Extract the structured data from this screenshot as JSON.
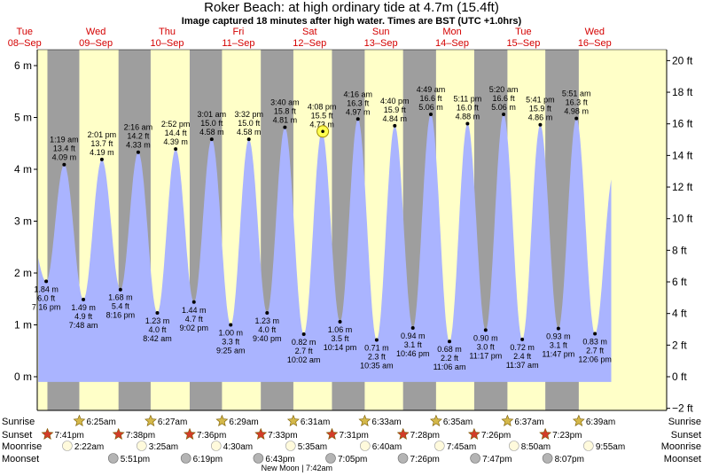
{
  "header": {
    "title": "Roker Beach: at high  ordinary tide at 4.7m (15.4ft)",
    "subtitle": "Image captured 18 minutes after high water. Times are BST (UTC +1.0hrs)"
  },
  "days": [
    {
      "dow": "Tue",
      "date": "08–Sep"
    },
    {
      "dow": "Wed",
      "date": "09–Sep"
    },
    {
      "dow": "Thu",
      "date": "10–Sep"
    },
    {
      "dow": "Fri",
      "date": "11–Sep"
    },
    {
      "dow": "Sat",
      "date": "12–Sep"
    },
    {
      "dow": "Sun",
      "date": "13–Sep"
    },
    {
      "dow": "Mon",
      "date": "14–Sep"
    },
    {
      "dow": "Tue",
      "date": "15–Sep"
    },
    {
      "dow": "Wed",
      "date": "16–Sep"
    }
  ],
  "colors": {
    "night": "#9e9e9e",
    "day": "#ffffc8",
    "tide": "#aab4ff",
    "date_text": "#d40000",
    "sun_star": "#d4b84a",
    "sunset_star": "#d23c28",
    "moonrise": "#fffadc",
    "moonset": "#b4b4b4"
  },
  "chart_data": {
    "type": "area",
    "x_unit": "hours from 00:00 Tue 08-Sep (BST)",
    "xlim": [
      16.25,
      228.25
    ],
    "ylim_m": [
      -0.17,
      6.32
    ],
    "ylim_ft": [
      -2,
      21
    ],
    "y_ticks_m": [
      "0 m",
      "1 m",
      "2 m",
      "3 m",
      "4 m",
      "5 m",
      "6 m"
    ],
    "y_ticks_ft": [
      "−2 ft",
      "0 ft",
      "2 ft",
      "4 ft",
      "6 ft",
      "8 ft",
      "10 ft",
      "12 ft",
      "14 ft",
      "16 ft",
      "18 ft",
      "20 ft"
    ],
    "start_level_m": 2.9,
    "end_level_m": 3.5,
    "extremes": [
      {
        "type": "low",
        "time": "7:16 pm",
        "m": "1.84 m",
        "ft": "6.0 ft",
        "h": 19.27,
        "v": 1.84
      },
      {
        "type": "high",
        "time": "1:19 am",
        "m": "4.09 m",
        "ft": "13.4 ft",
        "h": 25.32,
        "v": 4.09
      },
      {
        "type": "low",
        "time": "7:48 am",
        "m": "1.49 m",
        "ft": "4.9 ft",
        "h": 31.8,
        "v": 1.49
      },
      {
        "type": "high",
        "time": "2:01 pm",
        "m": "4.19 m",
        "ft": "13.7 ft",
        "h": 38.02,
        "v": 4.19
      },
      {
        "type": "low",
        "time": "8:16 pm",
        "m": "1.68 m",
        "ft": "5.4 ft",
        "h": 44.27,
        "v": 1.68
      },
      {
        "type": "high",
        "time": "2:16 am",
        "m": "4.33 m",
        "ft": "14.2 ft",
        "h": 50.27,
        "v": 4.33
      },
      {
        "type": "low",
        "time": "8:42 am",
        "m": "1.23 m",
        "ft": "4.0 ft",
        "h": 56.7,
        "v": 1.23
      },
      {
        "type": "high",
        "time": "2:52 pm",
        "m": "4.39 m",
        "ft": "14.4 ft",
        "h": 62.87,
        "v": 4.39
      },
      {
        "type": "low",
        "time": "9:02 pm",
        "m": "1.44 m",
        "ft": "4.7 ft",
        "h": 69.03,
        "v": 1.44
      },
      {
        "type": "high",
        "time": "3:01 am",
        "m": "4.58 m",
        "ft": "15.0 ft",
        "h": 75.02,
        "v": 4.58
      },
      {
        "type": "low",
        "time": "9:25 am",
        "m": "1.00 m",
        "ft": "3.3 ft",
        "h": 81.42,
        "v": 1.0
      },
      {
        "type": "high",
        "time": "3:32 pm",
        "m": "4.58 m",
        "ft": "15.0 ft",
        "h": 87.53,
        "v": 4.58
      },
      {
        "type": "low",
        "time": "9:40 pm",
        "m": "1.23 m",
        "ft": "4.0 ft",
        "h": 93.67,
        "v": 1.23
      },
      {
        "type": "high",
        "time": "3:40 am",
        "m": "4.81 m",
        "ft": "15.8 ft",
        "h": 99.67,
        "v": 4.81
      },
      {
        "type": "low",
        "time": "10:02 am",
        "m": "0.82 m",
        "ft": "2.7 ft",
        "h": 106.03,
        "v": 0.82
      },
      {
        "type": "high",
        "time": "4:08 pm",
        "m": "4.73 m",
        "ft": "15.5 ft",
        "h": 112.13,
        "v": 4.73
      },
      {
        "type": "low",
        "time": "10:14 pm",
        "m": "1.06 m",
        "ft": "3.5 ft",
        "h": 118.23,
        "v": 1.06
      },
      {
        "type": "high",
        "time": "4:16 am",
        "m": "4.97 m",
        "ft": "16.3 ft",
        "h": 124.27,
        "v": 4.97
      },
      {
        "type": "low",
        "time": "10:35 am",
        "m": "0.71 m",
        "ft": "2.3 ft",
        "h": 130.58,
        "v": 0.71
      },
      {
        "type": "high",
        "time": "4:40 pm",
        "m": "4.84 m",
        "ft": "15.9 ft",
        "h": 136.67,
        "v": 4.84
      },
      {
        "type": "low",
        "time": "10:46 pm",
        "m": "0.94 m",
        "ft": "3.1 ft",
        "h": 142.77,
        "v": 0.94
      },
      {
        "type": "high",
        "time": "4:49 am",
        "m": "5.06 m",
        "ft": "16.6 ft",
        "h": 148.82,
        "v": 5.06
      },
      {
        "type": "low",
        "time": "11:06 am",
        "m": "0.68 m",
        "ft": "2.2 ft",
        "h": 155.1,
        "v": 0.68
      },
      {
        "type": "high",
        "time": "5:11 pm",
        "m": "4.88 m",
        "ft": "16.0 ft",
        "h": 161.18,
        "v": 4.88
      },
      {
        "type": "low",
        "time": "11:17 pm",
        "m": "0.90 m",
        "ft": "3.0 ft",
        "h": 167.28,
        "v": 0.9
      },
      {
        "type": "high",
        "time": "5:20 am",
        "m": "5.06 m",
        "ft": "16.6 ft",
        "h": 173.33,
        "v": 5.06
      },
      {
        "type": "low",
        "time": "11:37 am",
        "m": "0.72 m",
        "ft": "2.4 ft",
        "h": 179.62,
        "v": 0.72
      },
      {
        "type": "high",
        "time": "5:41 pm",
        "m": "4.86 m",
        "ft": "15.9 ft",
        "h": 185.68,
        "v": 4.86
      },
      {
        "type": "low",
        "time": "11:47 pm",
        "m": "0.93 m",
        "ft": "3.1 ft",
        "h": 191.78,
        "v": 0.93
      },
      {
        "type": "high",
        "time": "5:51 am",
        "m": "4.98 m",
        "ft": "16.3 ft",
        "h": 197.85,
        "v": 4.98
      },
      {
        "type": "low",
        "time": "12:06 pm",
        "m": "0.83 m",
        "ft": "2.7 ft",
        "h": 204.1,
        "v": 0.83
      }
    ],
    "current": {
      "h": 112.43,
      "v": 4.73
    },
    "nights": [
      {
        "start": 19.68,
        "end": 30.42
      },
      {
        "start": 43.63,
        "end": 54.45
      },
      {
        "start": 67.6,
        "end": 78.48
      },
      {
        "start": 91.55,
        "end": 102.52
      },
      {
        "start": 115.52,
        "end": 126.55
      },
      {
        "start": 139.47,
        "end": 150.58
      },
      {
        "start": 163.43,
        "end": 174.62
      },
      {
        "start": 187.38,
        "end": 198.65
      }
    ]
  },
  "rows": {
    "labels": {
      "sunrise": "Sunrise",
      "sunset": "Sunset",
      "moonrise": "Moonrise",
      "moonset": "Moonset"
    },
    "sunrise": [
      {
        "h": 30.42,
        "t": "6:25am"
      },
      {
        "h": 54.45,
        "t": "6:27am"
      },
      {
        "h": 78.48,
        "t": "6:29am"
      },
      {
        "h": 102.52,
        "t": "6:31am"
      },
      {
        "h": 126.55,
        "t": "6:33am"
      },
      {
        "h": 150.58,
        "t": "6:35am"
      },
      {
        "h": 174.62,
        "t": "6:37am"
      },
      {
        "h": 198.65,
        "t": "6:39am"
      }
    ],
    "sunset": [
      {
        "h": 19.68,
        "t": "7:41pm"
      },
      {
        "h": 43.63,
        "t": "7:38pm"
      },
      {
        "h": 67.6,
        "t": "7:36pm"
      },
      {
        "h": 91.55,
        "t": "7:33pm"
      },
      {
        "h": 115.52,
        "t": "7:31pm"
      },
      {
        "h": 139.47,
        "t": "7:28pm"
      },
      {
        "h": 163.43,
        "t": "7:26pm"
      },
      {
        "h": 187.38,
        "t": "7:23pm"
      }
    ],
    "moonrise": [
      {
        "h": 26.37,
        "t": "2:22am"
      },
      {
        "h": 51.42,
        "t": "3:25am"
      },
      {
        "h": 76.5,
        "t": "4:30am"
      },
      {
        "h": 101.58,
        "t": "5:35am"
      },
      {
        "h": 126.67,
        "t": "6:40am"
      },
      {
        "h": 151.75,
        "t": "7:45am"
      },
      {
        "h": 176.83,
        "t": "8:50am"
      },
      {
        "h": 201.92,
        "t": "9:55am"
      }
    ],
    "moonset": [
      {
        "h": 41.85,
        "t": "5:51pm"
      },
      {
        "h": 66.32,
        "t": "6:19pm"
      },
      {
        "h": 90.72,
        "t": "6:43pm"
      },
      {
        "h": 115.08,
        "t": "7:05pm"
      },
      {
        "h": 139.43,
        "t": "7:26pm"
      },
      {
        "h": 163.78,
        "t": "7:47pm"
      },
      {
        "h": 188.12,
        "t": "8:07pm"
      }
    ],
    "new_moon": "New Moon | 7:42am"
  }
}
